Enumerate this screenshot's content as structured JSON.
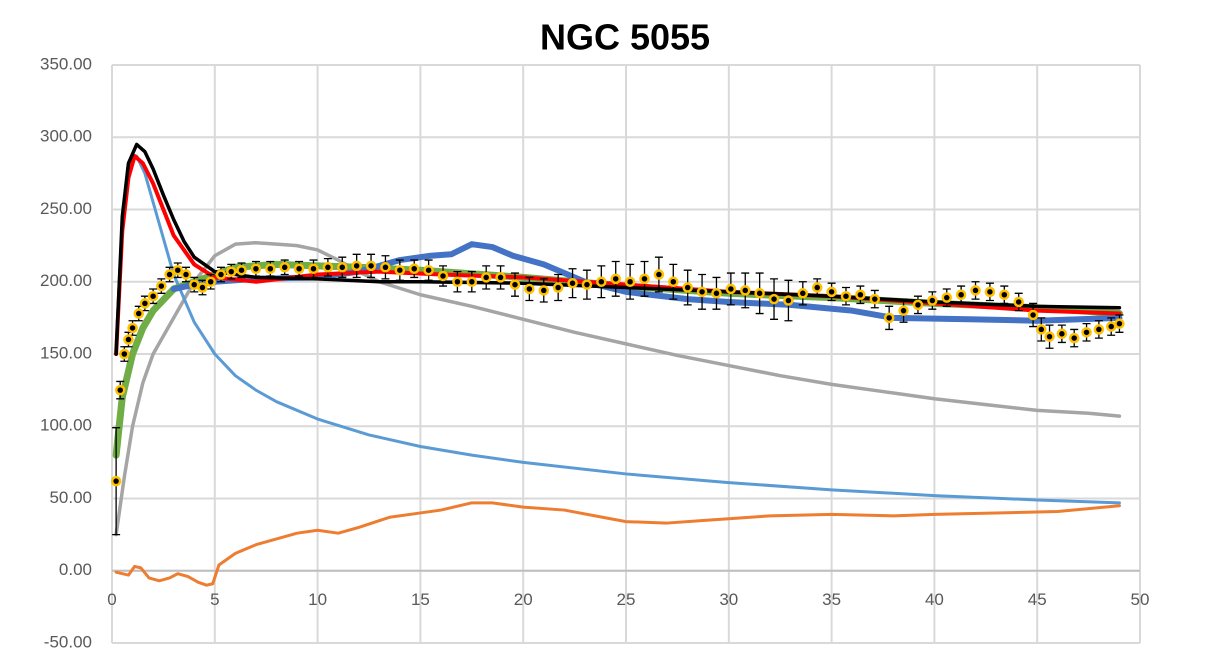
{
  "chart_data": {
    "type": "line",
    "title": "NGC 5055",
    "xlim": [
      0,
      50
    ],
    "xticks": [
      0,
      5,
      10,
      15,
      20,
      25,
      30,
      35,
      40,
      45,
      50
    ],
    "ylim": [
      -50,
      350
    ],
    "yticks": [
      {
        "value": -50,
        "label": "-50.00"
      },
      {
        "value": 0,
        "label": "0.00"
      },
      {
        "value": 50,
        "label": "50.00"
      },
      {
        "value": 100,
        "label": "100.00"
      },
      {
        "value": 150,
        "label": "150.00"
      },
      {
        "value": 200,
        "label": "200.00"
      },
      {
        "value": 250,
        "label": "250.00"
      },
      {
        "value": 300,
        "label": "300.00"
      },
      {
        "value": 350,
        "label": "350.00"
      }
    ],
    "grid": true,
    "series": [
      {
        "color": "#a5a5a5",
        "width": 3.5,
        "x": [
          0.2,
          0.6,
          1.0,
          1.5,
          2.0,
          3.0,
          4.0,
          5.0,
          6.0,
          7.0,
          8.0,
          9.0,
          10.0,
          11.0,
          12.0,
          13.0,
          15.0,
          17.5,
          20.0,
          22.5,
          25.0,
          27.5,
          30.0,
          32.5,
          35.0,
          37.5,
          40.0,
          42.5,
          45.0,
          47.5,
          49.0
        ],
        "values": [
          25,
          65,
          100,
          130,
          150,
          175,
          200,
          218,
          226,
          227,
          226,
          225,
          222,
          215,
          207,
          200,
          191,
          183,
          174,
          165,
          157,
          149,
          142,
          135,
          129,
          124,
          119,
          115,
          111,
          109,
          107
        ]
      },
      {
        "color": "#5b9bd5",
        "width": 3,
        "x": [
          0.2,
          0.5,
          0.8,
          1.2,
          1.6,
          2.0,
          2.5,
          3.0,
          4.0,
          5.0,
          6.0,
          7.0,
          8.0,
          10.0,
          12.5,
          15.0,
          17.5,
          20.0,
          25.0,
          30.0,
          35.0,
          40.0,
          45.0,
          49.0
        ],
        "values": [
          150,
          240,
          280,
          287,
          275,
          255,
          230,
          205,
          172,
          150,
          135,
          125,
          117,
          105,
          94,
          86,
          80,
          75,
          67,
          61,
          56,
          52,
          49,
          47
        ]
      },
      {
        "color": "#ed7d31",
        "width": 3,
        "x": [
          0.2,
          0.8,
          1.1,
          1.4,
          1.8,
          2.3,
          2.8,
          3.2,
          3.7,
          4.2,
          4.6,
          4.9,
          5.2,
          6.0,
          7.0,
          8.0,
          9.0,
          10.0,
          11.0,
          12.0,
          13.5,
          15.0,
          16.0,
          17.5,
          18.5,
          20.0,
          22.0,
          23.5,
          25.0,
          27.0,
          29.0,
          30.0,
          32.0,
          35.0,
          38.0,
          40.0,
          43.0,
          46.0,
          49.0
        ],
        "values": [
          -1,
          -3,
          3,
          2,
          -5,
          -7,
          -5,
          -2,
          -4,
          -8,
          -10,
          -9,
          4,
          12,
          18,
          22,
          26,
          28,
          26,
          30,
          37,
          40,
          42,
          47,
          47,
          44,
          42,
          38,
          34,
          33,
          35,
          36,
          38,
          39,
          38,
          39,
          40,
          41,
          45
        ]
      },
      {
        "color": "#70ad47",
        "width": 7,
        "x": [
          0.2,
          0.5,
          1.0,
          1.5,
          2.0,
          3.0,
          4.0,
          5.0,
          6.0,
          8.0,
          10.0,
          12.0,
          15.0,
          20.0,
          25.0,
          30.0,
          35.0,
          40.0,
          45.0,
          49.0
        ],
        "values": [
          80,
          120,
          150,
          168,
          180,
          195,
          200,
          205,
          210,
          212,
          211,
          210,
          208,
          203,
          197,
          192,
          189,
          185,
          182,
          178
        ]
      },
      {
        "color": "#4472c4",
        "width": 6,
        "x": [
          3.0,
          4.0,
          5.0,
          7.0,
          10.0,
          12.0,
          14.0,
          15.5,
          16.5,
          17.5,
          18.5,
          19.5,
          21.0,
          23.0,
          25.0,
          28.0,
          30.0,
          33.0,
          36.0,
          38.0,
          42.0,
          45.0,
          49.0
        ],
        "values": [
          195,
          198,
          200,
          202,
          203,
          207,
          215,
          218,
          219,
          226,
          224,
          218,
          212,
          200,
          193,
          188,
          186,
          184,
          180,
          175,
          174,
          173,
          175
        ]
      },
      {
        "color": "#ff0000",
        "width": 4,
        "x": [
          0.2,
          0.5,
          0.8,
          1.1,
          1.5,
          2.0,
          2.5,
          3.0,
          4.0,
          5.0,
          7.0,
          10.0,
          13.0,
          16.0,
          20.0,
          25.0,
          30.0,
          35.0,
          40.0,
          45.0,
          49.0
        ],
        "values": [
          150,
          235,
          272,
          287,
          282,
          268,
          250,
          232,
          212,
          203,
          200,
          205,
          207,
          205,
          203,
          198,
          193,
          190,
          185,
          180,
          178
        ]
      },
      {
        "color": "#000000",
        "width": 3.5,
        "x": [
          0.2,
          0.5,
          0.8,
          1.2,
          1.6,
          2.0,
          2.5,
          3.0,
          3.5,
          4.0,
          5.0,
          7.0,
          10.0,
          13.0,
          15.0,
          20.0,
          25.0,
          30.0,
          35.0,
          40.0,
          45.0,
          49.0
        ],
        "values": [
          150,
          245,
          282,
          295,
          290,
          278,
          260,
          243,
          228,
          217,
          207,
          203,
          202,
          200,
          200,
          199,
          196,
          193,
          190,
          186,
          183,
          182
        ]
      },
      {
        "color": "#ffc000",
        "width": 0,
        "marker": true,
        "x": [
          0.2,
          0.4,
          0.6,
          0.8,
          1.0,
          1.3,
          1.6,
          2.0,
          2.4,
          2.8,
          3.2,
          3.6,
          4.0,
          4.4,
          4.8,
          5.3,
          5.8,
          6.3,
          7.0,
          7.7,
          8.4,
          9.1,
          9.8,
          10.5,
          11.2,
          11.9,
          12.6,
          13.3,
          14.0,
          14.7,
          15.4,
          16.1,
          16.8,
          17.5,
          18.2,
          18.9,
          19.6,
          20.3,
          21.0,
          21.7,
          22.4,
          23.1,
          23.8,
          24.5,
          25.2,
          25.9,
          26.6,
          27.3,
          28.0,
          28.7,
          29.4,
          30.1,
          30.8,
          31.5,
          32.2,
          32.9,
          33.6,
          34.3,
          35.0,
          35.7,
          36.4,
          37.1,
          37.8,
          38.5,
          39.2,
          39.9,
          40.6,
          41.3,
          42.0,
          42.7,
          43.4,
          44.1,
          44.8,
          45.2,
          45.6,
          46.2,
          46.8,
          47.4,
          48.0,
          48.6,
          49.0
        ],
        "values": [
          62,
          125,
          150,
          160,
          168,
          178,
          185,
          190,
          197,
          205,
          208,
          205,
          198,
          196,
          200,
          205,
          207,
          208,
          209,
          209,
          210,
          209,
          209,
          210,
          210,
          211,
          211,
          210,
          208,
          209,
          208,
          204,
          200,
          200,
          203,
          203,
          198,
          195,
          194,
          196,
          199,
          198,
          200,
          202,
          200,
          202,
          205,
          200,
          196,
          193,
          192,
          195,
          194,
          192,
          188,
          187,
          192,
          196,
          193,
          190,
          191,
          188,
          175,
          180,
          184,
          187,
          189,
          191,
          194,
          193,
          191,
          186,
          177,
          167,
          162,
          164,
          161,
          165,
          167,
          169,
          171
        ],
        "errors": [
          37,
          6,
          5,
          5,
          5,
          5,
          5,
          5,
          5,
          5,
          5,
          5,
          5,
          5,
          5,
          5,
          5,
          5,
          5,
          5,
          5,
          5,
          6,
          6,
          7,
          8,
          8,
          8,
          7,
          6,
          7,
          7,
          7,
          7,
          8,
          8,
          8,
          8,
          8,
          9,
          10,
          10,
          11,
          12,
          12,
          12,
          12,
          12,
          12,
          12,
          11,
          11,
          12,
          14,
          14,
          14,
          8,
          6,
          6,
          6,
          6,
          6,
          8,
          8,
          6,
          6,
          6,
          6,
          6,
          6,
          6,
          6,
          8,
          8,
          8,
          6,
          6,
          6,
          6,
          6,
          6
        ]
      }
    ]
  }
}
